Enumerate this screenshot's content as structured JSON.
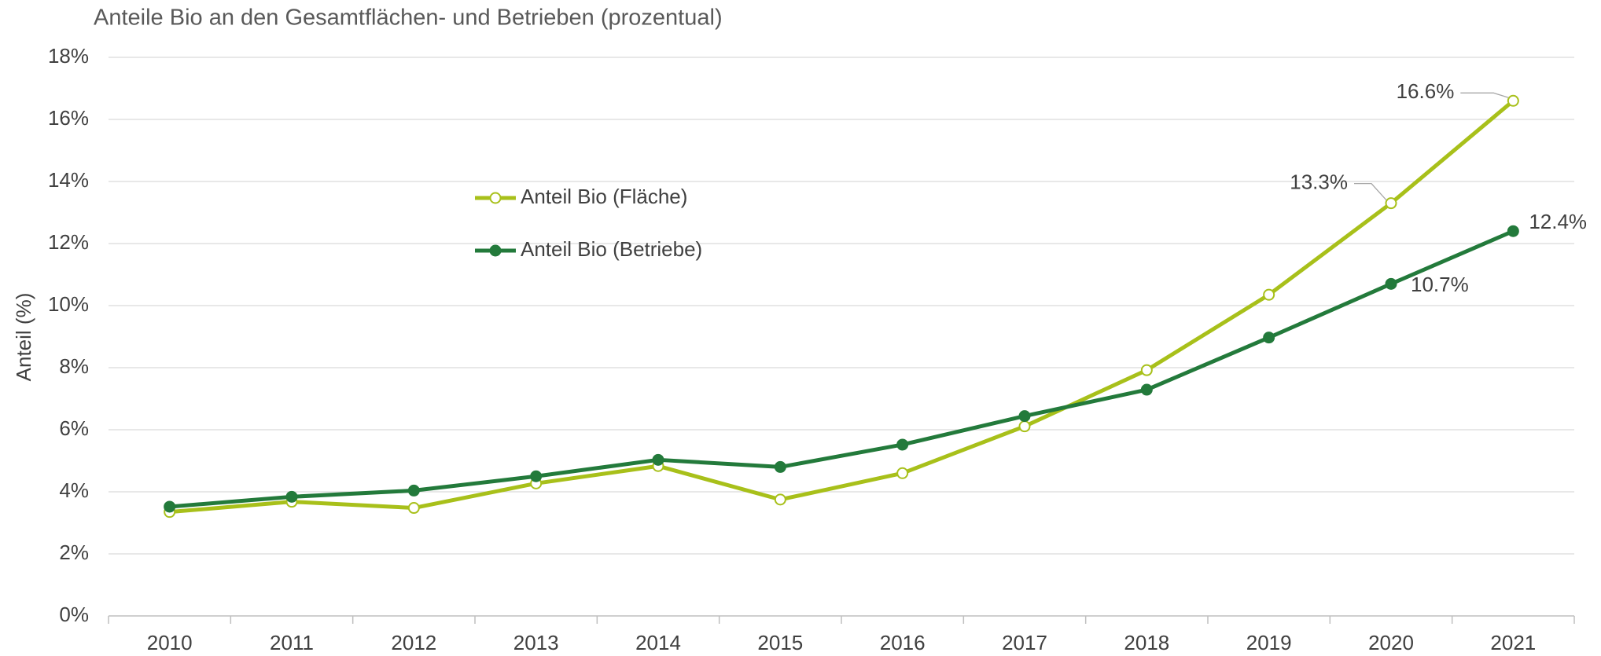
{
  "chart_data": {
    "type": "line",
    "title": "Anteile Bio an den Gesamtflächen- und Betrieben (prozentual)",
    "y_label": "Anteil (%)",
    "categories": [
      "2010",
      "2011",
      "2012",
      "2013",
      "2014",
      "2015",
      "2016",
      "2017",
      "2018",
      "2019",
      "2020",
      "2021"
    ],
    "series": [
      {
        "name": "Anteil Bio (Fläche)",
        "color": "#a8c01a",
        "marker": "open",
        "values": [
          3.35,
          3.68,
          3.48,
          4.27,
          4.83,
          3.75,
          4.6,
          6.11,
          7.92,
          10.35,
          13.3,
          16.6
        ],
        "value_labels": [
          null,
          null,
          null,
          null,
          null,
          null,
          null,
          null,
          null,
          null,
          "13.3%",
          "16.6%"
        ]
      },
      {
        "name": "Anteil Bio (Betriebe)",
        "color": "#237a3b",
        "marker": "filled",
        "values": [
          3.52,
          3.84,
          4.04,
          4.5,
          5.03,
          4.8,
          5.52,
          6.44,
          7.29,
          8.97,
          10.7,
          12.4
        ],
        "value_labels": [
          null,
          null,
          null,
          null,
          null,
          null,
          null,
          null,
          null,
          null,
          "10.7%",
          "12.4%"
        ]
      }
    ],
    "ylim": [
      0,
      18
    ],
    "yticks": [
      {
        "value": 0,
        "label": "0%"
      },
      {
        "value": 2,
        "label": "2%"
      },
      {
        "value": 4,
        "label": "4%"
      },
      {
        "value": 6,
        "label": "6%"
      },
      {
        "value": 8,
        "label": "8%"
      },
      {
        "value": 10,
        "label": "10%"
      },
      {
        "value": 12,
        "label": "12%"
      },
      {
        "value": 14,
        "label": "14%"
      },
      {
        "value": 16,
        "label": "16%"
      },
      {
        "value": 18,
        "label": "18%"
      }
    ],
    "grid": true
  }
}
